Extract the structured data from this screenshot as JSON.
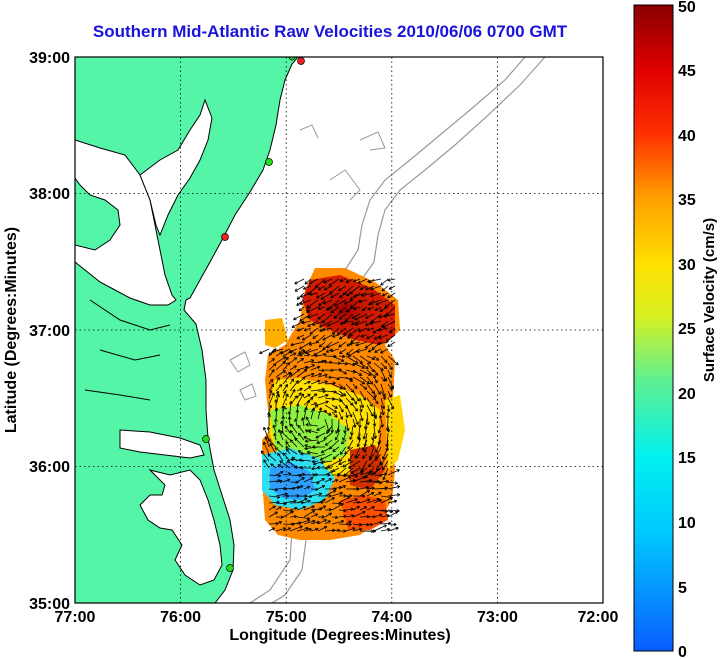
{
  "title": "Southern Mid-Atlantic Raw Velocities 2010/06/06 0700 GMT",
  "x_axis": {
    "label": "Longitude (Degrees:Minutes)",
    "ticks": [
      "77:00",
      "76:00",
      "75:00",
      "74:00",
      "73:00",
      "72:00"
    ]
  },
  "y_axis": {
    "label": "Latitude (Degrees:Minutes)",
    "ticks": [
      "35:00",
      "36:00",
      "37:00",
      "38:00",
      "39:00"
    ]
  },
  "colorbar": {
    "label": "Surface Velocity (cm/s)",
    "ticks": [
      "0",
      "5",
      "10",
      "15",
      "20",
      "25",
      "30",
      "35",
      "40",
      "45",
      "50"
    ],
    "min": 0,
    "max": 50
  },
  "colors": {
    "land": "#55f5a8",
    "coast_outline": "#000000",
    "bathymetry": "#9a9a9a",
    "title": "#1a14d8",
    "station_active": "#22dd22",
    "station_inactive": "#ee2222"
  }
}
